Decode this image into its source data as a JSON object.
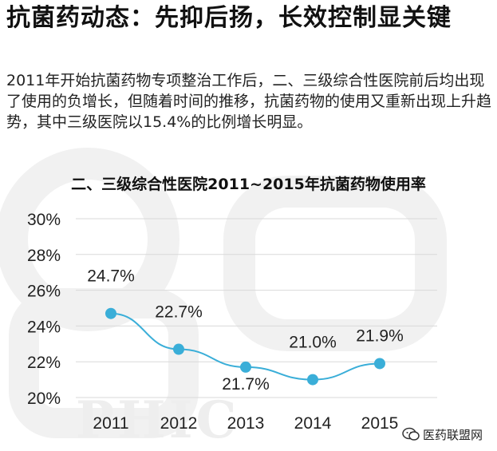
{
  "headline": "抗菌药动态：先抑后扬，长效控制显关键",
  "intro": "2011年开始抗菌药物专项整治工作后，二、三级综合性医院前后均出现了使用的负增长，但随着时间的推移，抗菌药物的使用又重新出现上升趋势，其中三级医院以15.4%的比例增长明显。",
  "brand": {
    "text": "医药联盟网",
    "icon": "wechat-icon"
  },
  "colors": {
    "line": "#3aaed8",
    "marker": "#3aaed8",
    "grid": "#d9d9d9",
    "watermark": "#f1f1f1"
  },
  "chart_data": {
    "type": "line",
    "title": "二、三级综合性医院2011~2015年抗菌药物使用率",
    "categories": [
      "2011",
      "2012",
      "2013",
      "2014",
      "2015"
    ],
    "values": [
      24.7,
      22.7,
      21.7,
      21.0,
      21.9
    ],
    "data_labels": [
      "24.7%",
      "22.7%",
      "21.7%",
      "21.0%",
      "21.9%"
    ],
    "y_ticks": [
      "20%",
      "22%",
      "24%",
      "26%",
      "28%",
      "30%"
    ],
    "ylim": [
      20,
      30
    ],
    "grid": true,
    "legend": "none",
    "watermark_text": "PHIC"
  }
}
